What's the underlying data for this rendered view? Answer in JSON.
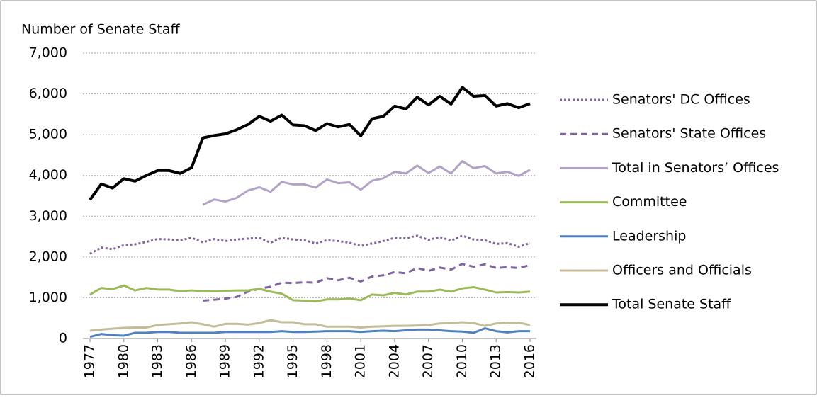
{
  "chart_data": {
    "type": "line",
    "y_label": "Number of Senate Staff",
    "x": [
      1977,
      1978,
      1979,
      1980,
      1981,
      1982,
      1983,
      1984,
      1985,
      1986,
      1987,
      1988,
      1989,
      1990,
      1991,
      1992,
      1993,
      1994,
      1995,
      1996,
      1997,
      1998,
      1999,
      2000,
      2001,
      2002,
      2003,
      2004,
      2005,
      2006,
      2007,
      2008,
      2009,
      2010,
      2011,
      2012,
      2013,
      2014,
      2015,
      2016
    ],
    "xlim": [
      1977,
      2016
    ],
    "xticks": [
      1977,
      1980,
      1983,
      1986,
      1989,
      1992,
      1995,
      1998,
      2001,
      2004,
      2007,
      2010,
      2013,
      2016
    ],
    "ylim": [
      0,
      7000
    ],
    "yticks": [
      0,
      {
        "value": 1000,
        "label": "1,000"
      },
      {
        "value": 2000,
        "label": "2,000"
      },
      {
        "value": 3000,
        "label": "3,000"
      },
      {
        "value": 4000,
        "label": "4,000"
      },
      {
        "value": 5000,
        "label": "5,000"
      },
      {
        "value": 6000,
        "label": "6,000"
      },
      {
        "value": 7000,
        "label": "7,000"
      }
    ],
    "grid": true,
    "legend": "right",
    "series": [
      {
        "name": "Senators' DC Offices",
        "color": "#8064a2",
        "dash": "dotted",
        "values": [
          2080,
          2230,
          2190,
          2290,
          2310,
          2370,
          2440,
          2430,
          2410,
          2470,
          2360,
          2440,
          2390,
          2430,
          2450,
          2470,
          2350,
          2470,
          2430,
          2410,
          2330,
          2410,
          2390,
          2350,
          2270,
          2330,
          2390,
          2470,
          2460,
          2520,
          2420,
          2490,
          2400,
          2520,
          2430,
          2410,
          2320,
          2340,
          2250,
          2340
        ]
      },
      {
        "name": "Senators' State Offices",
        "color": "#8064a2",
        "dash": "dashed",
        "values": [
          null,
          null,
          null,
          null,
          null,
          null,
          null,
          null,
          null,
          null,
          930,
          950,
          980,
          1020,
          1150,
          1220,
          1270,
          1370,
          1360,
          1380,
          1370,
          1480,
          1430,
          1490,
          1400,
          1520,
          1550,
          1630,
          1600,
          1730,
          1660,
          1740,
          1690,
          1830,
          1760,
          1820,
          1730,
          1750,
          1730,
          1800
        ]
      },
      {
        "name": "Total in Senators’ Offices",
        "color": "#b3a2c7",
        "dash": "solid",
        "values": [
          null,
          null,
          null,
          null,
          null,
          null,
          null,
          null,
          null,
          null,
          3280,
          3410,
          3360,
          3450,
          3630,
          3710,
          3600,
          3840,
          3780,
          3780,
          3700,
          3900,
          3810,
          3830,
          3650,
          3870,
          3930,
          4090,
          4050,
          4240,
          4060,
          4220,
          4050,
          4350,
          4180,
          4230,
          4050,
          4090,
          3990,
          4140
        ]
      },
      {
        "name": "Committee",
        "color": "#9bbb59",
        "dash": "solid",
        "values": [
          1077,
          1240,
          1210,
          1300,
          1180,
          1240,
          1200,
          1200,
          1160,
          1180,
          1160,
          1160,
          1170,
          1180,
          1180,
          1220,
          1150,
          1100,
          940,
          930,
          910,
          960,
          960,
          980,
          940,
          1080,
          1060,
          1120,
          1080,
          1150,
          1150,
          1200,
          1150,
          1230,
          1260,
          1200,
          1130,
          1140,
          1130,
          1150
        ]
      },
      {
        "name": "Leadership",
        "color": "#4f81bd",
        "dash": "solid",
        "values": [
          40,
          110,
          80,
          70,
          140,
          140,
          160,
          160,
          140,
          140,
          140,
          140,
          160,
          160,
          160,
          160,
          160,
          180,
          160,
          160,
          170,
          180,
          180,
          180,
          160,
          180,
          190,
          180,
          200,
          220,
          220,
          200,
          180,
          170,
          140,
          250,
          180,
          150,
          180,
          180
        ]
      },
      {
        "name": "Officers and Officials",
        "color": "#c4bd97",
        "dash": "solid",
        "values": [
          190,
          220,
          240,
          260,
          270,
          270,
          330,
          350,
          370,
          400,
          350,
          290,
          360,
          360,
          340,
          380,
          450,
          400,
          400,
          350,
          350,
          290,
          290,
          290,
          270,
          290,
          300,
          310,
          310,
          320,
          330,
          370,
          380,
          400,
          380,
          310,
          370,
          390,
          390,
          330
        ]
      },
      {
        "name": "Total Senate Staff",
        "color": "#000000",
        "dash": "solid",
        "values": [
          3400,
          3790,
          3690,
          3920,
          3860,
          4000,
          4120,
          4120,
          4050,
          4190,
          4920,
          4980,
          5020,
          5120,
          5250,
          5450,
          5330,
          5480,
          5240,
          5220,
          5100,
          5270,
          5190,
          5250,
          4970,
          5390,
          5450,
          5700,
          5630,
          5920,
          5730,
          5940,
          5750,
          6160,
          5940,
          5960,
          5700,
          5760,
          5660,
          5760
        ]
      }
    ]
  }
}
